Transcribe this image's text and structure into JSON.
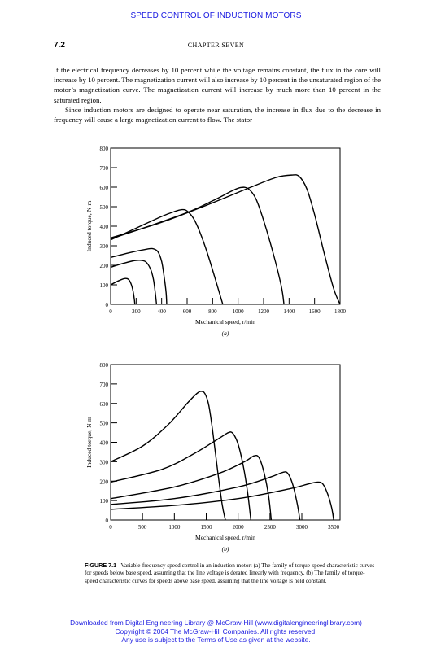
{
  "running_header": "SPEED CONTROL OF INDUCTION MOTORS",
  "page_number": "7.2",
  "chapter_title": "CHAPTER SEVEN",
  "paragraph_1": "If the electrical frequency decreases by 10 percent while the voltage remains constant, the flux in the core will increase by 10 percent. The magnetization current will also increase by 10 percent in the unsaturated region of the motor’s magnetization curve. The magnetization current will increase by much more than 10 percent in the saturated region.",
  "paragraph_2": "Since induction motors are designed to operate near saturation, the increase in flux due to the decrease in frequency will cause a large magnetization current to flow. The stator",
  "chart_data": [
    {
      "type": "line",
      "panel_label": "(a)",
      "xlabel": "Mechanical speed, r/min",
      "ylabel": "Induced torque, N·m",
      "xlim": [
        0,
        1800
      ],
      "ylim": [
        0,
        800
      ],
      "x_ticks": [
        0,
        200,
        400,
        600,
        800,
        1000,
        1200,
        1400,
        1600,
        1800
      ],
      "y_ticks": [
        0,
        100,
        200,
        300,
        400,
        500,
        600,
        700,
        800
      ],
      "series": [
        {
          "points": [
            [
              0,
              100
            ],
            [
              60,
              120
            ],
            [
              110,
              132
            ],
            [
              140,
              128
            ],
            [
              160,
              105
            ],
            [
              175,
              70
            ],
            [
              185,
              30
            ],
            [
              190,
              0
            ]
          ]
        },
        {
          "points": [
            [
              0,
              190
            ],
            [
              100,
              210
            ],
            [
              200,
              225
            ],
            [
              270,
              220
            ],
            [
              310,
              185
            ],
            [
              335,
              130
            ],
            [
              350,
              60
            ],
            [
              360,
              0
            ]
          ]
        },
        {
          "points": [
            [
              0,
              240
            ],
            [
              150,
              265
            ],
            [
              280,
              282
            ],
            [
              330,
              285
            ],
            [
              370,
              270
            ],
            [
              400,
              220
            ],
            [
              420,
              140
            ],
            [
              435,
              60
            ],
            [
              440,
              0
            ]
          ]
        },
        {
          "points": [
            [
              0,
              330
            ],
            [
              200,
              390
            ],
            [
              400,
              450
            ],
            [
              500,
              475
            ],
            [
              560,
              485
            ],
            [
              600,
              478
            ],
            [
              650,
              440
            ],
            [
              700,
              370
            ],
            [
              760,
              260
            ],
            [
              830,
              110
            ],
            [
              880,
              0
            ]
          ]
        },
        {
          "points": [
            [
              0,
              335
            ],
            [
              300,
              400
            ],
            [
              600,
              470
            ],
            [
              800,
              530
            ],
            [
              950,
              580
            ],
            [
              1020,
              598
            ],
            [
              1080,
              592
            ],
            [
              1140,
              540
            ],
            [
              1200,
              430
            ],
            [
              1280,
              250
            ],
            [
              1340,
              90
            ],
            [
              1360,
              0
            ]
          ]
        },
        {
          "points": [
            [
              0,
              340
            ],
            [
              400,
              420
            ],
            [
              800,
              520
            ],
            [
              1100,
              600
            ],
            [
              1300,
              650
            ],
            [
              1420,
              662
            ],
            [
              1480,
              655
            ],
            [
              1540,
              590
            ],
            [
              1600,
              460
            ],
            [
              1680,
              250
            ],
            [
              1750,
              80
            ],
            [
              1800,
              0
            ]
          ]
        }
      ]
    },
    {
      "type": "line",
      "panel_label": "(b)",
      "xlabel": "Mechanical speed, r/min",
      "ylabel": "Induced torque, N·m",
      "xlim": [
        0,
        3600
      ],
      "ylim": [
        0,
        800
      ],
      "x_ticks": [
        0,
        500,
        1000,
        1500,
        2000,
        2500,
        3000,
        3500
      ],
      "y_ticks": [
        0,
        100,
        200,
        300,
        400,
        500,
        600,
        700,
        800
      ],
      "series": [
        {
          "points": [
            [
              0,
              300
            ],
            [
              500,
              380
            ],
            [
              900,
              490
            ],
            [
              1200,
              600
            ],
            [
              1350,
              650
            ],
            [
              1420,
              662
            ],
            [
              1480,
              650
            ],
            [
              1540,
              590
            ],
            [
              1600,
              460
            ],
            [
              1680,
              250
            ],
            [
              1750,
              80
            ],
            [
              1800,
              0
            ]
          ]
        },
        {
          "points": [
            [
              0,
              195
            ],
            [
              800,
              260
            ],
            [
              1300,
              340
            ],
            [
              1700,
              420
            ],
            [
              1850,
              450
            ],
            [
              1920,
              445
            ],
            [
              2000,
              390
            ],
            [
              2080,
              280
            ],
            [
              2150,
              140
            ],
            [
              2200,
              0
            ]
          ]
        },
        {
          "points": [
            [
              0,
              110
            ],
            [
              1000,
              170
            ],
            [
              1700,
              240
            ],
            [
              2100,
              300
            ],
            [
              2250,
              330
            ],
            [
              2330,
              320
            ],
            [
              2410,
              240
            ],
            [
              2480,
              120
            ],
            [
              2520,
              0
            ]
          ]
        },
        {
          "points": [
            [
              0,
              80
            ],
            [
              1000,
              110
            ],
            [
              2000,
              170
            ],
            [
              2500,
              220
            ],
            [
              2700,
              245
            ],
            [
              2780,
              240
            ],
            [
              2860,
              180
            ],
            [
              2930,
              80
            ],
            [
              2970,
              0
            ]
          ]
        },
        {
          "points": [
            [
              0,
              55
            ],
            [
              1000,
              75
            ],
            [
              2000,
              110
            ],
            [
              2800,
              160
            ],
            [
              3100,
              185
            ],
            [
              3250,
              195
            ],
            [
              3330,
              185
            ],
            [
              3410,
              130
            ],
            [
              3470,
              60
            ],
            [
              3500,
              0
            ]
          ]
        }
      ]
    }
  ],
  "figure_caption_label": "FIGURE 7.1",
  "figure_caption_text": "Variable-frequency speed control in an induction motor: (a) The family of torque-speed characteristic curves for speeds below base speed, assuming that the line voltage is derated linearly with frequency. (b) The family of torque-speed characteristic curves for speeds above base speed, assuming that the line voltage is held constant.",
  "footer_line_1": "Downloaded from Digital Engineering Library @ McGraw-Hill (www.digitalengineeringlibrary.com)",
  "footer_line_2": "Copyright © 2004 The McGraw-Hill Companies. All rights reserved.",
  "footer_line_3": "Any use is subject to the Terms of Use as given at the website."
}
